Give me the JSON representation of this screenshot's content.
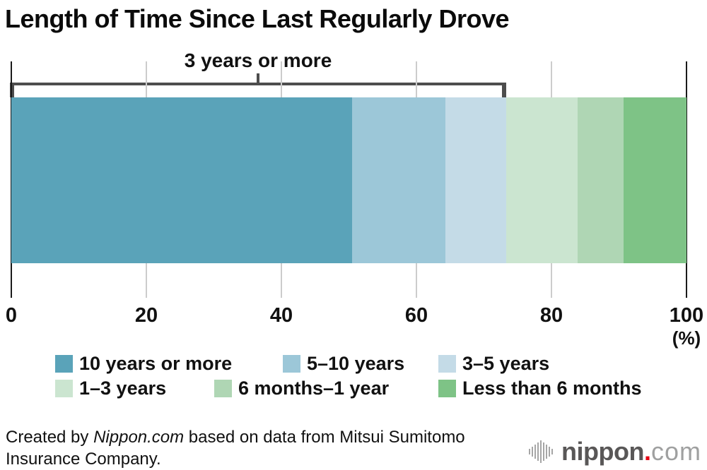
{
  "title": "Length of Time Since Last Regularly Drove",
  "chart_data": {
    "type": "bar",
    "orientation": "horizontal-stacked",
    "title": "Length of Time Since Last Regularly Drove",
    "segments": [
      {
        "label": "10 years or more",
        "value": 50.5,
        "color": "#5aa3b9"
      },
      {
        "label": "5–10 years",
        "value": 13.8,
        "color": "#9cc7d8"
      },
      {
        "label": "3–5 years",
        "value": 9.0,
        "color": "#c4dbe7"
      },
      {
        "label": "1–3 years",
        "value": 10.6,
        "color": "#cbe5d0"
      },
      {
        "label": "6 months–1 year",
        "value": 6.8,
        "color": "#afd6b4"
      },
      {
        "label": "Less than 6 months",
        "value": 9.3,
        "color": "#7ec386"
      }
    ],
    "x_ticks": [
      0,
      20,
      40,
      60,
      80,
      100
    ],
    "xlim": [
      0,
      100
    ],
    "x_unit_label": "(%)",
    "grid": true,
    "annotation": {
      "label": "3 years or more",
      "from_pct": 0,
      "to_pct": 73.3
    },
    "axis_color": "#1a1a1a",
    "gridline_color": "#cccccc",
    "bracket_color": "#4d4d4d"
  },
  "footer": {
    "text_before": "Created by ",
    "source_italic": "Nippon.com",
    "text_after": " based on data from Mitsui Sumitomo Insurance Company."
  },
  "logo": {
    "name_bold": "nippon",
    "dot": ".",
    "name_light": "com",
    "dot_color": "#e60012"
  }
}
